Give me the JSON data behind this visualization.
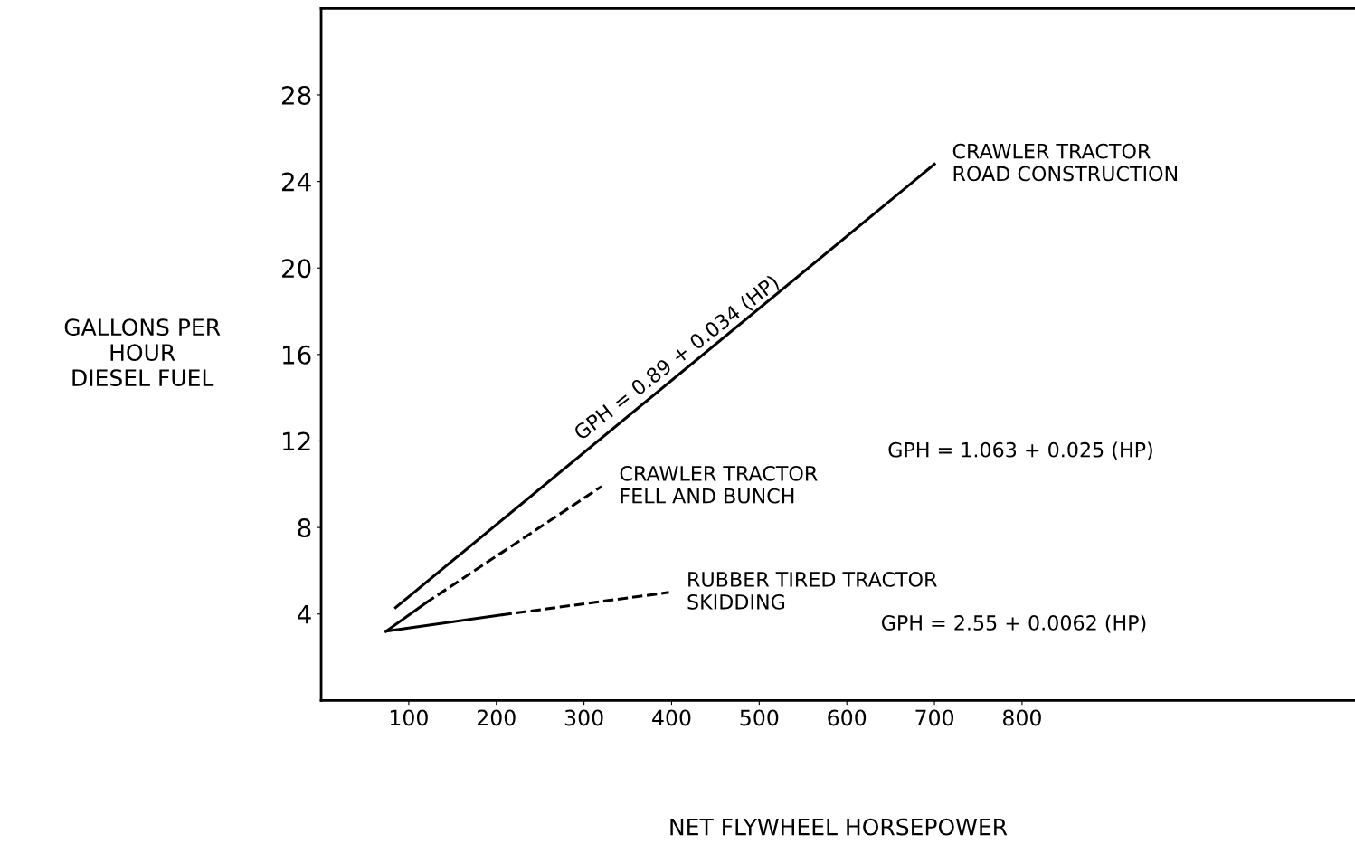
{
  "chart_data": {
    "type": "line",
    "xlabel": "NET FLYWHEEL HORSEPOWER",
    "ylabel": "GALLONS PER\nHOUR\nDIESEL FUEL",
    "xlim": [
      0,
      1180
    ],
    "ylim": [
      0,
      32
    ],
    "xticks": [
      100,
      200,
      300,
      400,
      500,
      600,
      700,
      800
    ],
    "yticks": [
      4,
      8,
      12,
      16,
      20,
      24,
      28
    ],
    "series": [
      {
        "name": "CRAWLER TRACTOR\nROAD CONSTRUCTION",
        "color": "#000000",
        "line_style": "solid",
        "x": [
          85,
          700
        ],
        "values": [
          4.3,
          24.8
        ]
      },
      {
        "color": "#000000",
        "line_style": "solid",
        "x": [
          74,
          119
        ],
        "values": [
          3.2,
          4.5
        ]
      },
      {
        "name": "CRAWLER TRACTOR\nFELL AND BUNCH",
        "color": "#000000",
        "line_style": "dashed",
        "x": [
          119,
          320
        ],
        "values": [
          4.5,
          9.9
        ]
      },
      {
        "color": "#000000",
        "line_style": "solid",
        "x": [
          74,
          206
        ],
        "values": [
          3.2,
          3.96
        ]
      },
      {
        "name": "RUBBER TIRED TRACTOR\nSKIDDING",
        "color": "#000000",
        "line_style": "dashed",
        "x": [
          206,
          397
        ],
        "values": [
          3.96,
          5.0
        ]
      }
    ],
    "annotations": [
      "GPH = 0.89 + 0.034 (HP)",
      "GPH = 1.063 + 0.025 (HP)",
      "GPH = 2.55 + 0.0062 (HP)"
    ],
    "grid": false,
    "marker": "none"
  }
}
